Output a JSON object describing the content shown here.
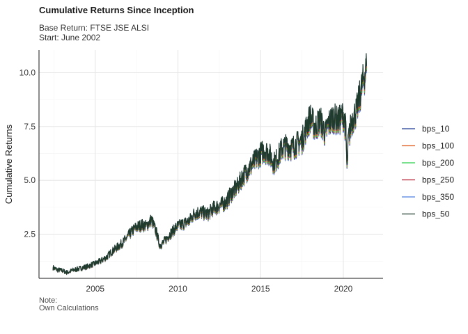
{
  "chart_data": {
    "type": "line",
    "title": "Cumulative Returns Since Inception",
    "subtitle": [
      "Base Return: FTSE JSE ALSI",
      "Start: June 2002"
    ],
    "caption": [
      "Note:",
      "Own Calculations"
    ],
    "xlabel": "",
    "ylabel": "Cumulative Returns",
    "x_ticks": [
      "2005",
      "2010",
      "2015",
      "2020"
    ],
    "y_ticks": [
      "2.5",
      "5.0",
      "7.5",
      "10.0"
    ],
    "xlim": [
      2001.6,
      2022.4
    ],
    "ylim": [
      0.45,
      11.05
    ],
    "grid": true,
    "legend_position": "right",
    "series": [
      {
        "name": "bps_10",
        "color": "#1f3a93",
        "offset": 0.0
      },
      {
        "name": "bps_100",
        "color": "#e05a1b",
        "offset": -0.05
      },
      {
        "name": "bps_200",
        "color": "#2bd14a",
        "offset": -0.1
      },
      {
        "name": "bps_250",
        "color": "#b2182b",
        "offset": -0.13
      },
      {
        "name": "bps_350",
        "color": "#4a7de0",
        "offset": -0.18
      },
      {
        "name": "bps_50",
        "color": "#1e3b2c",
        "offset": 0.02
      }
    ],
    "x": [
      2002.45,
      2002.7,
      2003.0,
      2003.3,
      2003.6,
      2004.0,
      2004.5,
      2004.9,
      2005.3,
      2005.7,
      2006.0,
      2006.4,
      2006.7,
      2007.0,
      2007.4,
      2007.8,
      2008.1,
      2008.4,
      2008.7,
      2008.9,
      2009.1,
      2009.5,
      2009.9,
      2010.3,
      2010.7,
      2011.0,
      2011.4,
      2011.8,
      2012.1,
      2012.5,
      2012.9,
      2013.2,
      2013.6,
      2013.9,
      2014.2,
      2014.6,
      2014.9,
      2015.2,
      2015.5,
      2015.8,
      2016.0,
      2016.3,
      2016.6,
      2016.9,
      2017.2,
      2017.5,
      2017.8,
      2018.0,
      2018.3,
      2018.6,
      2018.9,
      2019.1,
      2019.4,
      2019.7,
      2020.0,
      2020.15,
      2020.22,
      2020.3,
      2020.5,
      2020.8,
      2021.0,
      2021.2,
      2021.4
    ],
    "values": [
      0.95,
      0.85,
      0.82,
      0.72,
      0.82,
      0.9,
      1.0,
      1.12,
      1.25,
      1.45,
      1.7,
      1.95,
      2.15,
      2.45,
      2.8,
      2.95,
      2.9,
      3.2,
      2.6,
      2.0,
      2.1,
      2.5,
      2.85,
      3.0,
      3.15,
      3.5,
      3.55,
      3.45,
      3.7,
      3.85,
      4.0,
      4.4,
      4.75,
      5.2,
      5.5,
      5.9,
      6.2,
      6.45,
      6.3,
      5.85,
      6.05,
      6.55,
      6.65,
      6.55,
      6.75,
      6.9,
      7.6,
      8.0,
      7.5,
      7.9,
      7.2,
      7.7,
      8.0,
      7.8,
      8.1,
      7.4,
      5.55,
      6.9,
      7.8,
      8.3,
      9.0,
      9.7,
      10.3
    ]
  }
}
